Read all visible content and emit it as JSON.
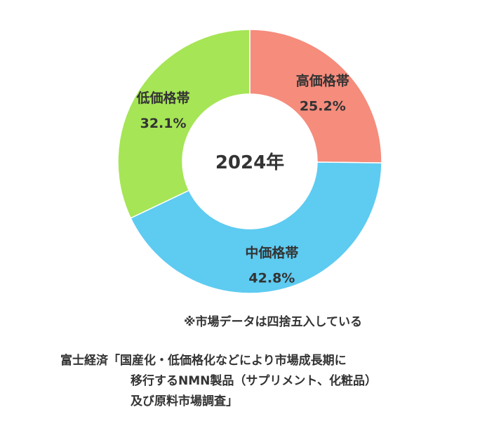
{
  "chart_data": {
    "type": "pie",
    "style": "donut",
    "center_label": "2024年",
    "slices": [
      {
        "label": "高価格帯",
        "value": 25.2,
        "value_label": "25.2%",
        "color": "#f58c7c"
      },
      {
        "label": "中価格帯",
        "value": 42.8,
        "value_label": "42.8%",
        "color": "#5ecbf1"
      },
      {
        "label": "低価格帯",
        "value": 32.1,
        "value_label": "32.1%",
        "color": "#a6e556"
      }
    ],
    "start": "12 o'clock",
    "direction": "clockwise"
  },
  "note": "※市場データは四捨五入している",
  "source": {
    "line1": "富士経済「国産化・低価格化などにより市場成長期に",
    "line2": "移行するNMN製品（サプリメント、化粧品）",
    "line3": "及び原料市場調査」"
  }
}
